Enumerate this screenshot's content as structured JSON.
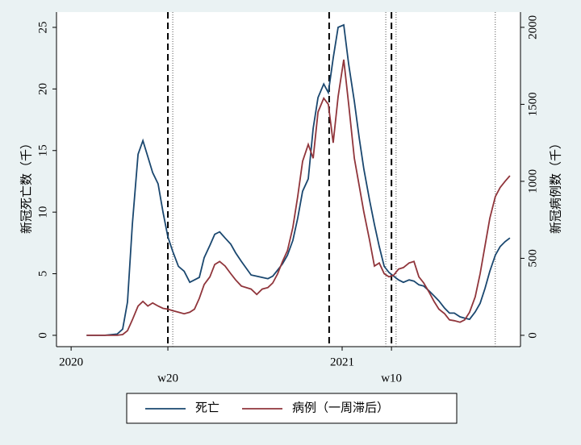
{
  "chart_data": {
    "type": "line",
    "y_label": "新冠死亡数（千）",
    "y2_label": "新冠病例数（千）",
    "x": [
      2020.057,
      2020.125,
      2020.17,
      2020.19,
      2020.208,
      2020.226,
      2020.247,
      2020.265,
      2020.283,
      2020.301,
      2020.321,
      2020.339,
      2020.357,
      2020.375,
      2020.396,
      2020.417,
      2020.438,
      2020.455,
      2020.473,
      2020.491,
      2020.512,
      2020.53,
      2020.548,
      2020.568,
      2020.589,
      2020.607,
      2020.628,
      2020.664,
      2020.685,
      2020.705,
      2020.726,
      2020.744,
      2020.762,
      2020.78,
      2020.798,
      2020.818,
      2020.836,
      2020.854,
      2020.875,
      2020.893,
      2020.911,
      2020.932,
      2020.949,
      2020.967,
      2020.985,
      2021.006,
      2021.024,
      2021.045,
      2021.063,
      2021.08,
      2021.101,
      2021.119,
      2021.137,
      2021.155,
      2021.173,
      2021.19,
      2021.208,
      2021.226,
      2021.247,
      2021.265,
      2021.283,
      2021.301,
      2021.321,
      2021.339,
      2021.357,
      2021.378,
      2021.396,
      2021.414,
      2021.435,
      2021.452,
      2021.47,
      2021.491,
      2021.509,
      2021.527,
      2021.545,
      2021.565,
      2021.583,
      2021.601,
      2021.619
    ],
    "series": [
      {
        "name": "死亡",
        "color": "#1a476f",
        "values": [
          0,
          0,
          0.1,
          0.5,
          2.7,
          9,
          14.7,
          15.8,
          14.5,
          13.2,
          12.3,
          10,
          8,
          6.8,
          5.6,
          5.2,
          4.3,
          4.5,
          4.7,
          6.3,
          7.3,
          8.2,
          8.4,
          7.9,
          7.4,
          6.7,
          6.0,
          4.9,
          4.8,
          4.7,
          4.6,
          4.8,
          5.3,
          5.8,
          6.5,
          7.7,
          9.5,
          11.7,
          12.7,
          16.8,
          19.3,
          20.4,
          19.7,
          22.5,
          25,
          25.2,
          22,
          19,
          16,
          13.5,
          11,
          9,
          7.2,
          5.6,
          5.1,
          4.8,
          4.5,
          4.3,
          4.5,
          4.4,
          4.1,
          4.0,
          3.6,
          3.2,
          2.8,
          2.2,
          1.8,
          1.8,
          1.5,
          1.4,
          1.3,
          1.9,
          2.6,
          3.8,
          5.2,
          6.5,
          7.2,
          7.6,
          7.9
        ]
      },
      {
        "name": "病例（一周滞后）",
        "color": "#90353b",
        "axis": "y2",
        "values": [
          0,
          0,
          0,
          5,
          30,
          100,
          190,
          220,
          190,
          210,
          190,
          175,
          170,
          160,
          150,
          140,
          150,
          170,
          240,
          330,
          380,
          460,
          480,
          450,
          400,
          360,
          320,
          300,
          265,
          300,
          310,
          340,
          400,
          480,
          550,
          700,
          900,
          1130,
          1240,
          1150,
          1450,
          1540,
          1500,
          1250,
          1550,
          1790,
          1500,
          1150,
          970,
          800,
          620,
          450,
          470,
          400,
          380,
          390,
          430,
          440,
          470,
          480,
          380,
          340,
          280,
          220,
          170,
          140,
          100,
          95,
          85,
          100,
          150,
          250,
          400,
          580,
          760,
          900,
          960,
          1000,
          1036
        ]
      }
    ],
    "xlim": [
      2019.946,
      2021.658
    ],
    "xticks": [
      2020,
      {
        "value": 2020.357,
        "label": "w20"
      },
      2021,
      {
        "value": 2021.182,
        "label": "w10"
      }
    ],
    "ylim": [
      -0.92,
      26.24
    ],
    "yticks": [
      0,
      5,
      10,
      15,
      20,
      25
    ],
    "y2lim": [
      -73.6,
      2099
    ],
    "y2ticks": [
      0,
      500,
      1000,
      1500,
      2000
    ],
    "vlines_dashed": [
      2020.357,
      2020.952,
      2021.182
    ],
    "vlines_dotted": [
      2020.375,
      2021.161,
      2021.199,
      2021.565
    ],
    "legend": "bottom"
  }
}
